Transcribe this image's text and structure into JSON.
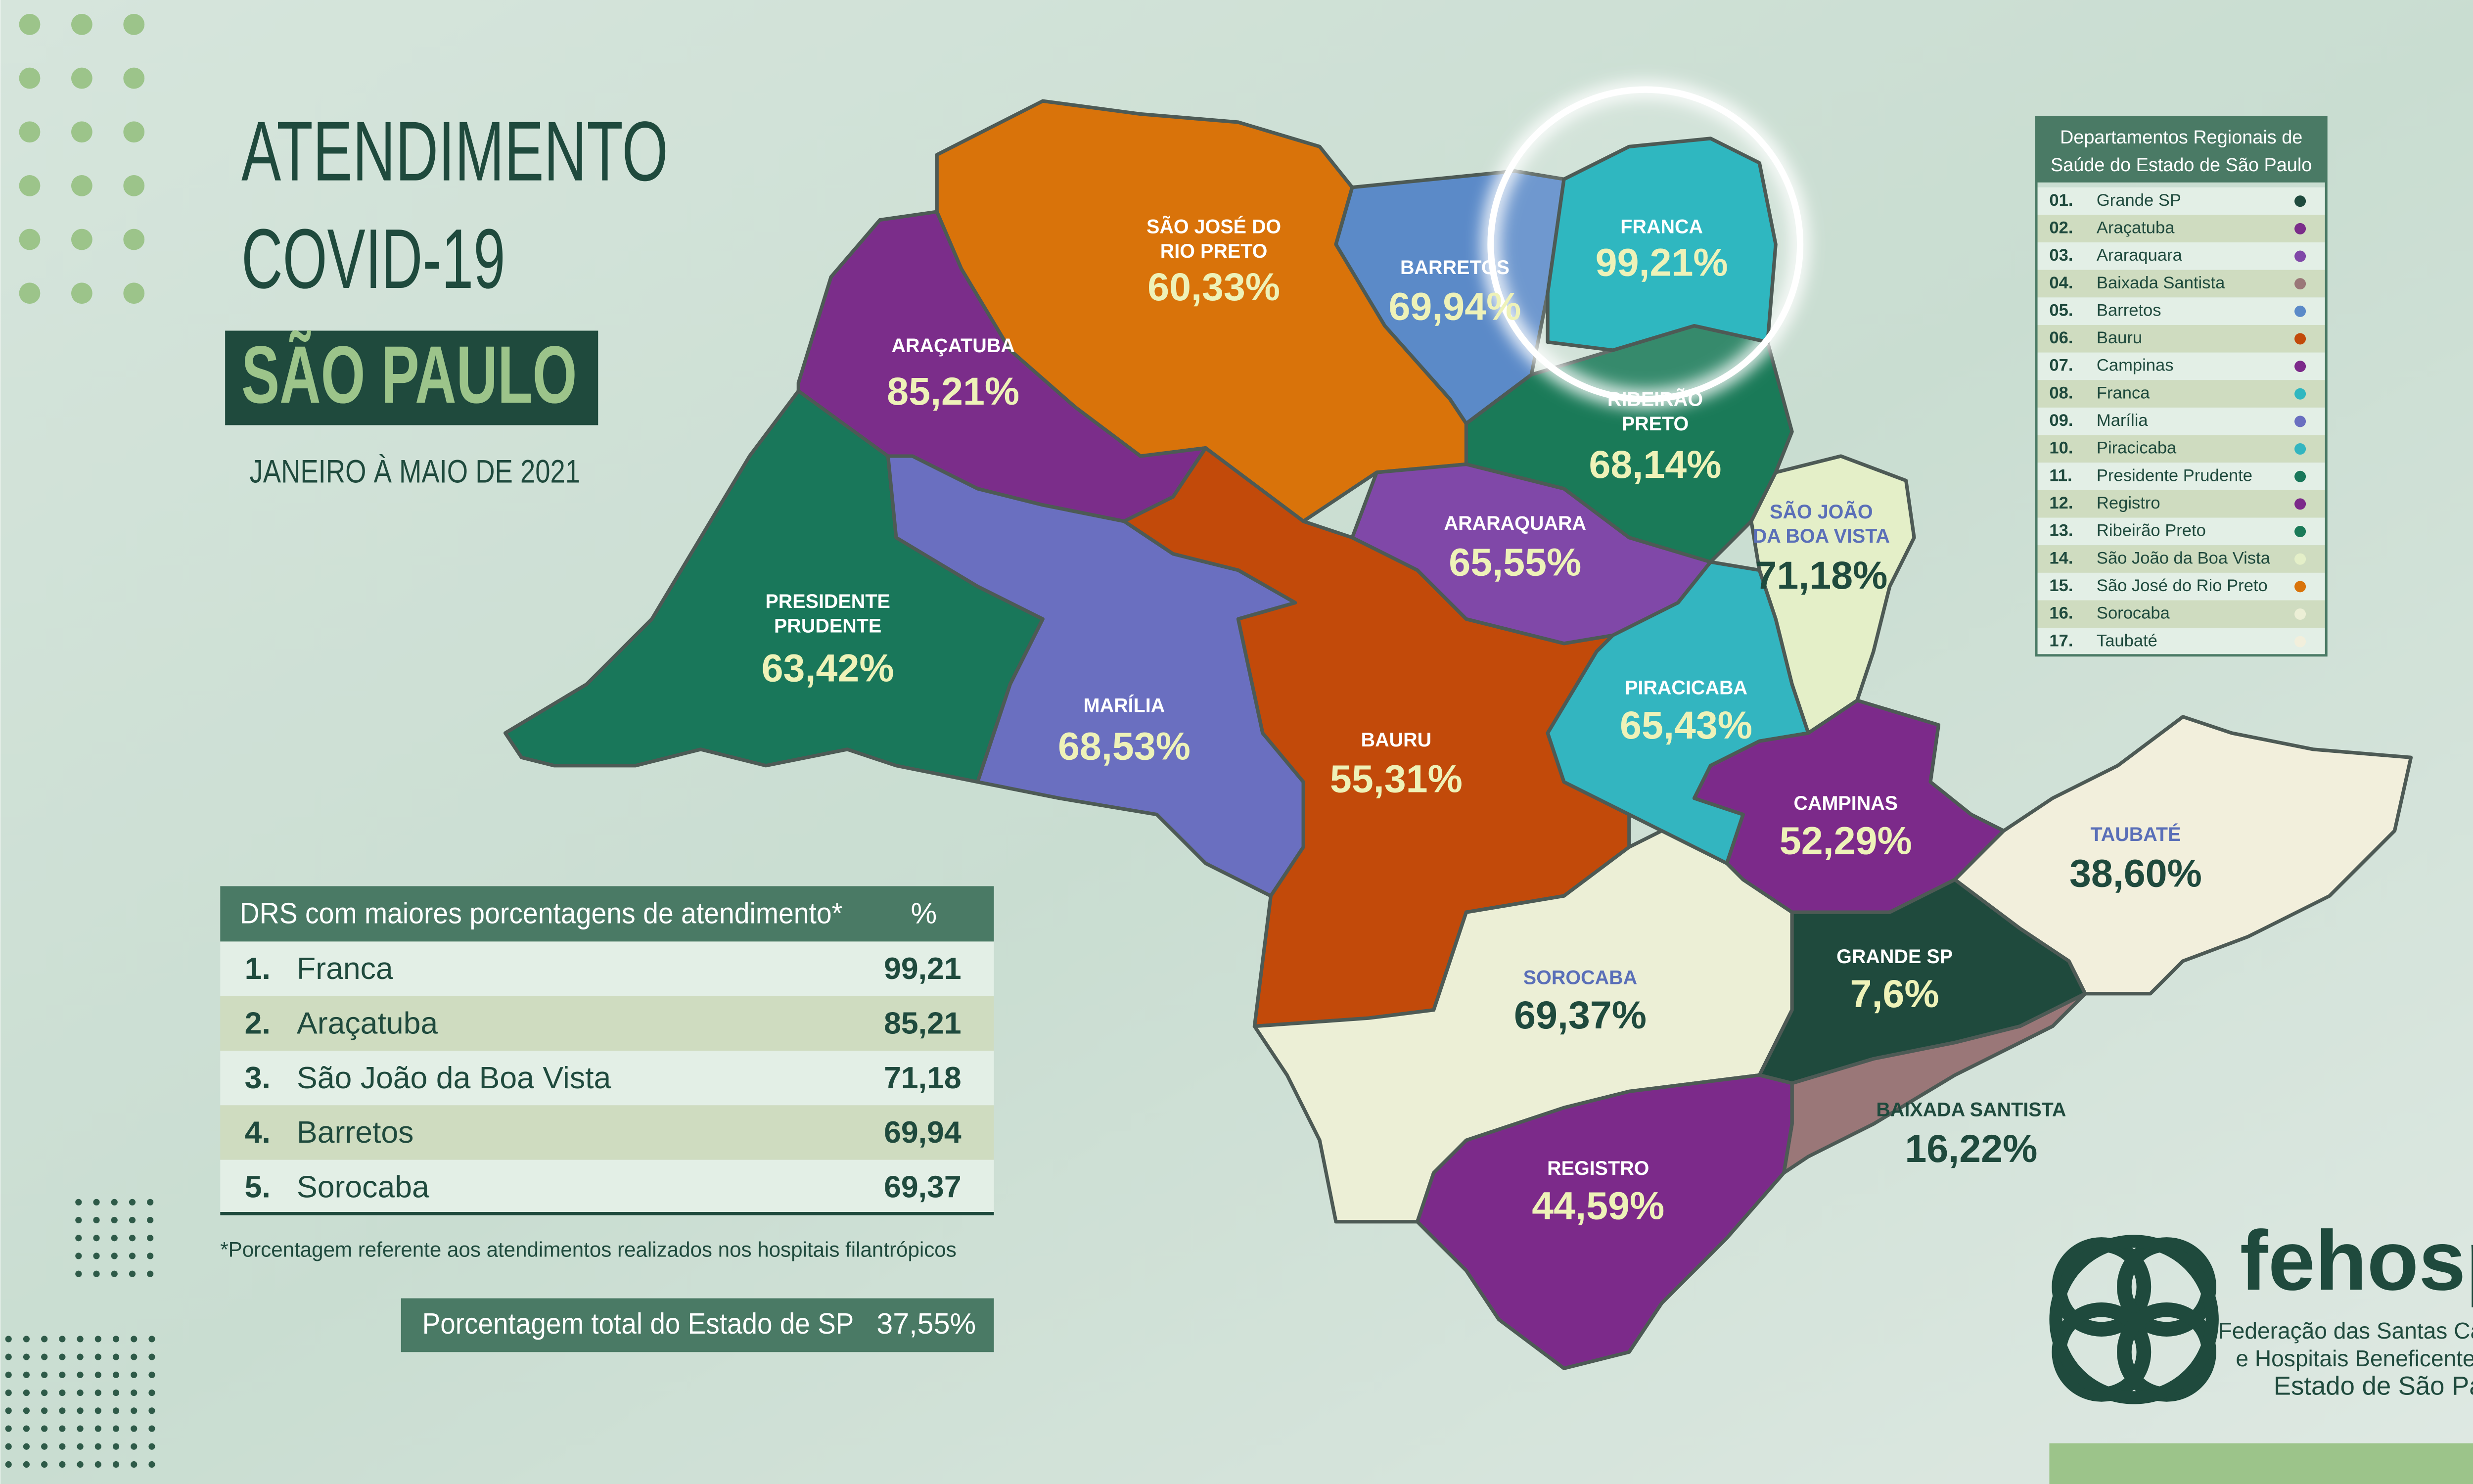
{
  "header": {
    "title_line1": "ATENDIMENTO",
    "title_line2": "COVID-19",
    "state": "SÃO PAULO",
    "period": "JANEIRO À MAIO DE 2021"
  },
  "map": {
    "regions": [
      {
        "name": [
          "SÃO JOSÉ DO",
          "RIO PRETO"
        ],
        "value": "60,33%"
      },
      {
        "name": [
          "ARAÇATUBA"
        ],
        "value": "85,21%"
      },
      {
        "name": [
          "BARRETOS"
        ],
        "value": "69,94%"
      },
      {
        "name": [
          "FRANCA"
        ],
        "value": "99,21%"
      },
      {
        "name": [
          "RIBEIRÃO",
          "PRETO"
        ],
        "value": "68,14%"
      },
      {
        "name": [
          "ARARAQUARA"
        ],
        "value": "65,55%"
      },
      {
        "name": [
          "SÃO JOÃO",
          "DA BOA VISTA"
        ],
        "value": "71,18%"
      },
      {
        "name": [
          "PRESIDENTE",
          "PRUDENTE"
        ],
        "value": "63,42%"
      },
      {
        "name": [
          "MARÍLIA"
        ],
        "value": "68,53%"
      },
      {
        "name": [
          "BAURU"
        ],
        "value": "55,31%"
      },
      {
        "name": [
          "PIRACICABA"
        ],
        "value": "65,43%"
      },
      {
        "name": [
          "CAMPINAS"
        ],
        "value": "52,29%"
      },
      {
        "name": [
          "TAUBATÉ"
        ],
        "value": "38,60%"
      },
      {
        "name": [
          "SOROCABA"
        ],
        "value": "69,37%"
      },
      {
        "name": [
          "GRANDE SP"
        ],
        "value": "7,6%"
      },
      {
        "name": [
          "BAIXADA SANTISTA"
        ],
        "value": "16,22%"
      },
      {
        "name": [
          "REGISTRO"
        ],
        "value": "44,59%"
      }
    ]
  },
  "legend": {
    "title": [
      "Departamentos Regionais de",
      "Saúde do Estado de São Paulo"
    ],
    "items": [
      {
        "number": "01.",
        "name": "Grande SP",
        "color": "#1f4a3d"
      },
      {
        "number": "02.",
        "name": "Araçatuba",
        "color": "#7b2d8a"
      },
      {
        "number": "03.",
        "name": "Araraquara",
        "color": "#8048a8"
      },
      {
        "number": "04.",
        "name": "Baixada Santista",
        "color": "#9a7778"
      },
      {
        "number": "05.",
        "name": "Barretos",
        "color": "#5b8ac8"
      },
      {
        "number": "06.",
        "name": "Bauru",
        "color": "#c24a0a"
      },
      {
        "number": "07.",
        "name": "Campinas",
        "color": "#7c2a8a"
      },
      {
        "number": "08.",
        "name": "Franca",
        "color": "#2fb7c0"
      },
      {
        "number": "09.",
        "name": "Marília",
        "color": "#6a6fc0"
      },
      {
        "number": "10.",
        "name": "Piracicaba",
        "color": "#33b5c0"
      },
      {
        "number": "11.",
        "name": "Presidente Prudente",
        "color": "#19775a"
      },
      {
        "number": "12.",
        "name": "Registro",
        "color": "#7c2a8a"
      },
      {
        "number": "13.",
        "name": "Ribeirão Preto",
        "color": "#1a7a58"
      },
      {
        "number": "14.",
        "name": "São João da Boa Vista",
        "color": "#e4efc8"
      },
      {
        "number": "15.",
        "name": "São José do Rio Preto",
        "color": "#d9730a"
      },
      {
        "number": "16.",
        "name": "Sorocaba",
        "color": "#ecefd6"
      },
      {
        "number": "17.",
        "name": "Taubaté",
        "color": "#f2efdc"
      }
    ]
  },
  "table": {
    "header": [
      "DRS com maiores porcentagens de atendimento*",
      "%"
    ],
    "rows": [
      [
        "1.",
        "Franca",
        "99,21"
      ],
      [
        "2.",
        "Araçatuba",
        "85,21"
      ],
      [
        "3.",
        "São João da Boa Vista",
        "71,18"
      ],
      [
        "4.",
        "Barretos",
        "69,94"
      ],
      [
        "5.",
        "Sorocaba",
        "69,37"
      ]
    ]
  },
  "footnote": "*Porcentagem referente aos atendimentos realizados nos hospitais filantrópicos",
  "total": {
    "label": "Porcentagem total do Estado de SP",
    "value": "37,55%"
  },
  "logo": {
    "name": "fehosp",
    "lines": [
      "Federação das Santas Casas",
      "e Hospitais Beneficentes do",
      "Estado de São Paulo"
    ]
  }
}
